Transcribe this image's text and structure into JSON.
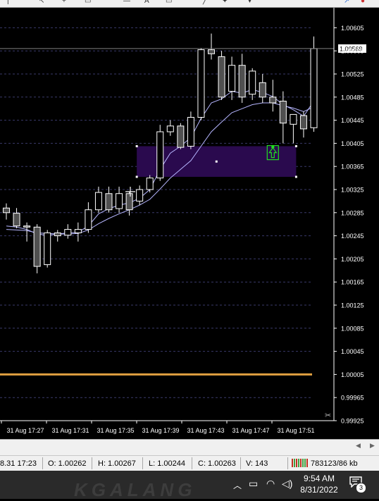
{
  "chart_data": {
    "type": "candlestick",
    "symbol_note": "",
    "current_price": "1.00569",
    "y_ticks": [
      "1.00605",
      "1.00565",
      "1.00525",
      "1.00485",
      "1.00445",
      "1.00405",
      "1.00365",
      "1.00325",
      "1.00285",
      "1.00245",
      "1.00205",
      "1.00165",
      "1.00125",
      "1.00085",
      "1.00045",
      "1.00005",
      "0.99965",
      "0.99925"
    ],
    "ylim": [
      0.99925,
      1.00625
    ],
    "x_ticks": [
      "31 Aug 17:27",
      "31 Aug 17:31",
      "31 Aug 17:35",
      "31 Aug 17:39",
      "31 Aug 17:43",
      "31 Aug 17:47",
      "31 Aug 17:51"
    ],
    "candles": [
      {
        "o": 1.00293,
        "h": 1.00301,
        "l": 1.00273,
        "c": 1.00285
      },
      {
        "o": 1.00284,
        "h": 1.00293,
        "l": 1.00258,
        "c": 1.00262
      },
      {
        "o": 1.00262,
        "h": 1.00268,
        "l": 1.00235,
        "c": 1.0026
      },
      {
        "o": 1.0026,
        "h": 1.00265,
        "l": 1.0018,
        "c": 1.00192
      },
      {
        "o": 1.00195,
        "h": 1.00255,
        "l": 1.0019,
        "c": 1.0025
      },
      {
        "o": 1.0025,
        "h": 1.00255,
        "l": 1.00235,
        "c": 1.00245
      },
      {
        "o": 1.00246,
        "h": 1.00265,
        "l": 1.0024,
        "c": 1.00256
      },
      {
        "o": 1.0025,
        "h": 1.00268,
        "l": 1.00235,
        "c": 1.00256
      },
      {
        "o": 1.00256,
        "h": 1.00303,
        "l": 1.0025,
        "c": 1.0029
      },
      {
        "o": 1.0029,
        "h": 1.0033,
        "l": 1.00285,
        "c": 1.0032
      },
      {
        "o": 1.00318,
        "h": 1.0033,
        "l": 1.00285,
        "c": 1.0029
      },
      {
        "o": 1.00292,
        "h": 1.0033,
        "l": 1.00285,
        "c": 1.00318
      },
      {
        "o": 1.00318,
        "h": 1.00322,
        "l": 1.0028,
        "c": 1.0029
      },
      {
        "o": 1.00305,
        "h": 1.00332,
        "l": 1.00298,
        "c": 1.00325
      },
      {
        "o": 1.00325,
        "h": 1.0035,
        "l": 1.0032,
        "c": 1.00345
      },
      {
        "o": 1.00345,
        "h": 1.00437,
        "l": 1.0034,
        "c": 1.00425
      },
      {
        "o": 1.00425,
        "h": 1.00445,
        "l": 1.00418,
        "c": 1.00435
      },
      {
        "o": 1.00435,
        "h": 1.0044,
        "l": 1.00395,
        "c": 1.00398
      },
      {
        "o": 1.004,
        "h": 1.0046,
        "l": 1.00395,
        "c": 1.0045
      },
      {
        "o": 1.0045,
        "h": 1.0057,
        "l": 1.00445,
        "c": 1.00567
      },
      {
        "o": 1.00567,
        "h": 1.00595,
        "l": 1.0055,
        "c": 1.0056
      },
      {
        "o": 1.00555,
        "h": 1.00565,
        "l": 1.0048,
        "c": 1.00485
      },
      {
        "o": 1.00495,
        "h": 1.00555,
        "l": 1.0048,
        "c": 1.0054
      },
      {
        "o": 1.0054,
        "h": 1.0056,
        "l": 1.00475,
        "c": 1.00485
      },
      {
        "o": 1.0049,
        "h": 1.00535,
        "l": 1.0048,
        "c": 1.0053
      },
      {
        "o": 1.0051,
        "h": 1.00525,
        "l": 1.00475,
        "c": 1.00485
      },
      {
        "o": 1.00485,
        "h": 1.00515,
        "l": 1.0046,
        "c": 1.00475
      },
      {
        "o": 1.00478,
        "h": 1.00495,
        "l": 1.00405,
        "c": 1.0044
      },
      {
        "o": 1.00438,
        "h": 1.0045,
        "l": 1.00405,
        "c": 1.00455
      },
      {
        "o": 1.00453,
        "h": 1.0046,
        "l": 1.00415,
        "c": 1.0043
      },
      {
        "o": 1.00432,
        "h": 1.0059,
        "l": 1.00425,
        "c": 1.00569
      }
    ],
    "ma_fast": [
      1.00262,
      1.0026,
      1.00256,
      1.00248,
      1.00246,
      1.00248,
      1.0025,
      1.00251,
      1.00262,
      1.00283,
      1.00292,
      1.00298,
      1.00302,
      1.0031,
      1.00325,
      1.0036,
      1.00388,
      1.004,
      1.00415,
      1.00448,
      1.00475,
      1.00482,
      1.00495,
      1.00492,
      1.00498,
      1.00493,
      1.00486,
      1.00472,
      1.00463,
      1.00452,
      1.00478
    ],
    "ma_slow": [
      1.00256,
      1.00255,
      1.00254,
      1.0025,
      1.00249,
      1.00248,
      1.00248,
      1.00249,
      1.00255,
      1.00266,
      1.00275,
      1.00283,
      1.0029,
      1.00298,
      1.00308,
      1.00326,
      1.00345,
      1.0036,
      1.00375,
      1.004,
      1.00425,
      1.00442,
      1.00458,
      1.00465,
      1.00472,
      1.00475,
      1.00475,
      1.0047,
      1.00466,
      1.0046,
      1.00468
    ],
    "zone": {
      "from_candle": 13,
      "to_candle": 28,
      "top": 1.004,
      "bottom": 1.00347,
      "color": "#2a0a4e"
    },
    "buy_arrow": {
      "candle": 26,
      "price": 1.00395
    },
    "horizontal_line": {
      "price": 1.00005,
      "color": "#e0a040"
    },
    "colors": {
      "background": "#000000",
      "grid": "#3a3a6a",
      "candle": "#ffffff",
      "bull_fill": "#000000",
      "bear_fill": "#505050",
      "ma": "#b6b6ff",
      "axis_text": "#ffffff",
      "arrow": "#22dd22"
    }
  },
  "status": {
    "time": "8.31 17:23",
    "open": "O: 1.00262",
    "high": "H: 1.00267",
    "low": "L: 1.00244",
    "close": "C: 1.00263",
    "volume": "V: 143",
    "traffic": "783123/86 kb"
  },
  "taskbar": {
    "clock_time": "9:54 AM",
    "clock_date": "8/31/2022",
    "notification_count": "3"
  }
}
